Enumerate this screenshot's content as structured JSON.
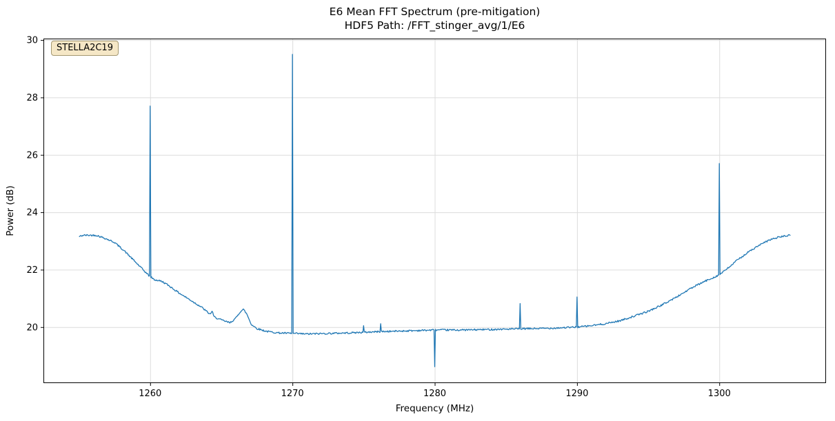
{
  "figure": {
    "title_line1": "E6 Mean FFT Spectrum (pre-mitigation)",
    "title_line2": "HDF5 Path: /FFT_stinger_avg/1/E6",
    "xlabel": "Frequency (MHz)",
    "ylabel": "Power (dB)",
    "annotation_label": "STELLA2C19"
  },
  "chart_data": {
    "type": "line",
    "title": "E6 Mean FFT Spectrum (pre-mitigation)",
    "subtitle": "HDF5 Path: /FFT_stinger_avg/1/E6",
    "xlabel": "Frequency (MHz)",
    "ylabel": "Power (dB)",
    "xlim": [
      1252.5,
      1307.5
    ],
    "ylim": [
      18.05,
      30.05
    ],
    "xticks": [
      1260,
      1270,
      1280,
      1290,
      1300
    ],
    "yticks": [
      20,
      22,
      24,
      26,
      28,
      30
    ],
    "grid": true,
    "line_color": "#1f77b4",
    "grid_color": "#dcdcdc",
    "annotation": "STELLA2C19",
    "noise_amplitude": 0.03,
    "sample_step": 0.05,
    "x_range": [
      1255,
      1305
    ],
    "baseline_keypoints": [
      [
        1255.0,
        23.15
      ],
      [
        1255.3,
        23.2
      ],
      [
        1256.2,
        23.2
      ],
      [
        1256.8,
        23.1
      ],
      [
        1257.5,
        22.95
      ],
      [
        1258.2,
        22.65
      ],
      [
        1258.8,
        22.35
      ],
      [
        1259.4,
        22.05
      ],
      [
        1259.9,
        21.8
      ],
      [
        1260.3,
        21.65
      ],
      [
        1260.8,
        21.6
      ],
      [
        1261.3,
        21.45
      ],
      [
        1262.0,
        21.2
      ],
      [
        1262.8,
        20.95
      ],
      [
        1263.6,
        20.7
      ],
      [
        1264.2,
        20.45
      ],
      [
        1264.35,
        20.55
      ],
      [
        1264.5,
        20.35
      ],
      [
        1265.0,
        20.25
      ],
      [
        1265.6,
        20.15
      ],
      [
        1266.0,
        20.3
      ],
      [
        1266.35,
        20.55
      ],
      [
        1266.55,
        20.62
      ],
      [
        1266.8,
        20.45
      ],
      [
        1267.1,
        20.1
      ],
      [
        1267.5,
        19.95
      ],
      [
        1268.2,
        19.85
      ],
      [
        1269.0,
        19.8
      ],
      [
        1270.0,
        19.78
      ],
      [
        1271.0,
        19.76
      ],
      [
        1272.5,
        19.78
      ],
      [
        1274.0,
        19.8
      ],
      [
        1276.0,
        19.84
      ],
      [
        1278.0,
        19.87
      ],
      [
        1280.0,
        19.9
      ],
      [
        1282.0,
        19.9
      ],
      [
        1284.0,
        19.92
      ],
      [
        1286.0,
        19.94
      ],
      [
        1288.0,
        19.96
      ],
      [
        1290.0,
        20.0
      ],
      [
        1291.0,
        20.05
      ],
      [
        1292.0,
        20.12
      ],
      [
        1293.0,
        20.22
      ],
      [
        1294.0,
        20.38
      ],
      [
        1295.0,
        20.55
      ],
      [
        1296.0,
        20.78
      ],
      [
        1297.0,
        21.05
      ],
      [
        1298.0,
        21.35
      ],
      [
        1299.0,
        21.6
      ],
      [
        1300.0,
        21.82
      ],
      [
        1300.6,
        22.05
      ],
      [
        1301.3,
        22.35
      ],
      [
        1302.0,
        22.6
      ],
      [
        1302.8,
        22.85
      ],
      [
        1303.6,
        23.05
      ],
      [
        1304.3,
        23.15
      ],
      [
        1305.0,
        23.2
      ]
    ],
    "spikes": [
      {
        "freq": 1260.0,
        "value": 27.7
      },
      {
        "freq": 1270.0,
        "value": 29.5
      },
      {
        "freq": 1275.0,
        "value": 20.05
      },
      {
        "freq": 1276.2,
        "value": 20.12
      },
      {
        "freq": 1280.0,
        "value": 18.62
      },
      {
        "freq": 1286.0,
        "value": 20.82
      },
      {
        "freq": 1290.0,
        "value": 21.05
      },
      {
        "freq": 1300.0,
        "value": 25.7
      }
    ]
  }
}
